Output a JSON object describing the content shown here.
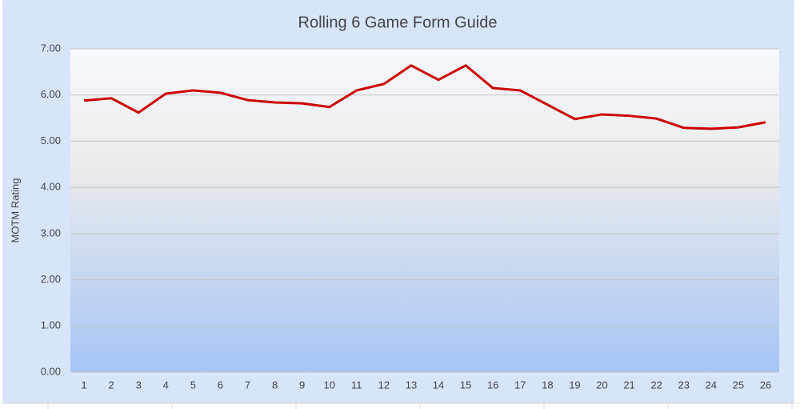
{
  "chart_data": {
    "type": "line",
    "title": "Rolling 6 Game Form Guide",
    "y_label": "MOTM Rating",
    "categories": [
      "1",
      "2",
      "3",
      "4",
      "5",
      "6",
      "7",
      "8",
      "9",
      "10",
      "11",
      "12",
      "13",
      "14",
      "15",
      "16",
      "17",
      "18",
      "19",
      "20",
      "21",
      "22",
      "23",
      "24",
      "25",
      "26"
    ],
    "series": [
      {
        "name": "MOTM Rating",
        "color": "#cc0000",
        "values": [
          5.88,
          5.93,
          5.62,
          6.03,
          6.1,
          6.05,
          5.89,
          5.84,
          5.82,
          5.74,
          6.1,
          6.24,
          6.64,
          6.33,
          6.64,
          6.15,
          6.1,
          5.79,
          5.48,
          5.58,
          5.55,
          5.49,
          5.29,
          5.27,
          5.3,
          5.41
        ]
      }
    ],
    "ylim": [
      0,
      7
    ],
    "yticks": [
      {
        "value": 0,
        "label": "0.00"
      },
      {
        "value": 1,
        "label": "1.00"
      },
      {
        "value": 2,
        "label": "2.00"
      },
      {
        "value": 3,
        "label": "3.00"
      },
      {
        "value": 4,
        "label": "4.00"
      },
      {
        "value": 5,
        "label": "5.00"
      },
      {
        "value": 6,
        "label": "6.00"
      },
      {
        "value": 7,
        "label": "7.00"
      }
    ],
    "grid": true
  }
}
